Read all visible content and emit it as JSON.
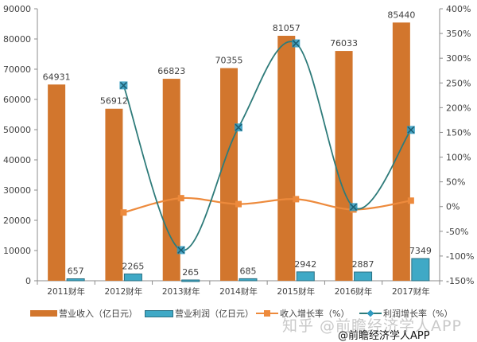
{
  "chart_data": {
    "type": "bar+line",
    "title": "",
    "categories": [
      "2011财年",
      "2012财年",
      "2013财年",
      "2014财年",
      "2015财年",
      "2016财年",
      "2017财年"
    ],
    "series": [
      {
        "name": "营业收入（亿日元）",
        "type": "bar",
        "axis": "left",
        "color": "#D2762D",
        "values": [
          64931,
          56912,
          66823,
          70355,
          81057,
          76033,
          85440
        ]
      },
      {
        "name": "营业利润（亿日元）",
        "type": "bar",
        "axis": "left",
        "color": "#3FA9C6",
        "values": [
          657,
          2265,
          265,
          685,
          2942,
          2887,
          7349
        ]
      },
      {
        "name": "收入增长率（%）",
        "type": "line",
        "axis": "right",
        "color": "#ED8A3C",
        "marker": "square",
        "values": [
          null,
          -12,
          17,
          5,
          15,
          -6,
          12
        ]
      },
      {
        "name": "利润增长率（%）",
        "type": "line",
        "axis": "right",
        "color": "#2E7B7A",
        "marker": "x",
        "marker_color": "#2E9AC0",
        "values": [
          null,
          245,
          -88,
          160,
          330,
          -1,
          155
        ]
      }
    ],
    "left_axis": {
      "min": 0,
      "max": 90000,
      "step": 10000,
      "ticks": [
        "0",
        "10000",
        "20000",
        "30000",
        "40000",
        "50000",
        "60000",
        "70000",
        "80000",
        "90000"
      ]
    },
    "right_axis": {
      "min": -150,
      "max": 400,
      "step": 50,
      "ticks": [
        "-150%",
        "-100%",
        "-50%",
        "0%",
        "50%",
        "100%",
        "150%",
        "200%",
        "250%",
        "300%",
        "350%",
        "400%"
      ]
    },
    "grid": false,
    "legend_position": "bottom"
  },
  "legend": {
    "items": [
      {
        "label": "营业收入（亿日元）"
      },
      {
        "label": "营业利润（亿日元）"
      },
      {
        "label": "收入增长率（%）"
      },
      {
        "label": "利润增长率（%）"
      }
    ]
  },
  "watermark": {
    "zhihu": "知乎 @前瞻经济学人APP",
    "source": "@前瞻经济学人APP"
  }
}
